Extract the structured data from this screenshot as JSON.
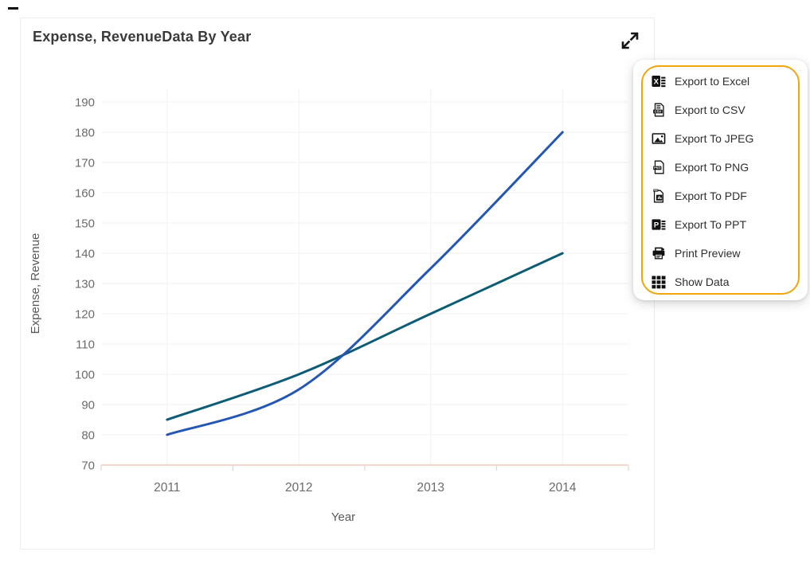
{
  "page": {
    "background": "#ffffff"
  },
  "card": {
    "title": "Expense, RevenueData By Year",
    "expand_icon": "expand-icon",
    "border_color": "#ececec"
  },
  "menu": {
    "border_color": "#F0A50A",
    "items": [
      {
        "icon": "excel-icon",
        "label": "Export to Excel"
      },
      {
        "icon": "csv-icon",
        "label": "Export to CSV"
      },
      {
        "icon": "jpeg-icon",
        "label": "Export To JPEG"
      },
      {
        "icon": "png-icon",
        "label": "Export To PNG"
      },
      {
        "icon": "pdf-icon",
        "label": "Export To PDF"
      },
      {
        "icon": "ppt-icon",
        "label": "Export To PPT"
      },
      {
        "icon": "printer-icon",
        "label": "Print Preview"
      },
      {
        "icon": "grid-icon",
        "label": "Show Data"
      }
    ]
  },
  "chart_data": {
    "type": "line",
    "title": "Expense, RevenueData By Year",
    "categories": [
      "2011",
      "2012",
      "2013",
      "2014"
    ],
    "series": [
      {
        "name": "Expense",
        "values": [
          85,
          100,
          120,
          140
        ],
        "color": "#0D5C75"
      },
      {
        "name": "Revenue",
        "values": [
          80,
          95,
          135,
          180
        ],
        "color": "#2456B4"
      }
    ],
    "xlabel": "Year",
    "ylabel": "Expense, Revenue",
    "ylim": [
      70,
      190
    ],
    "ytick_step": 10,
    "grid": true,
    "smooth": true,
    "legend": "none",
    "axis_line_color": "#F6C9BD",
    "gridline_color": "#f2f2f2",
    "tick_color": "#e2d4cf",
    "label_color": "#6b6b6b",
    "axis_title_color": "#595959"
  }
}
